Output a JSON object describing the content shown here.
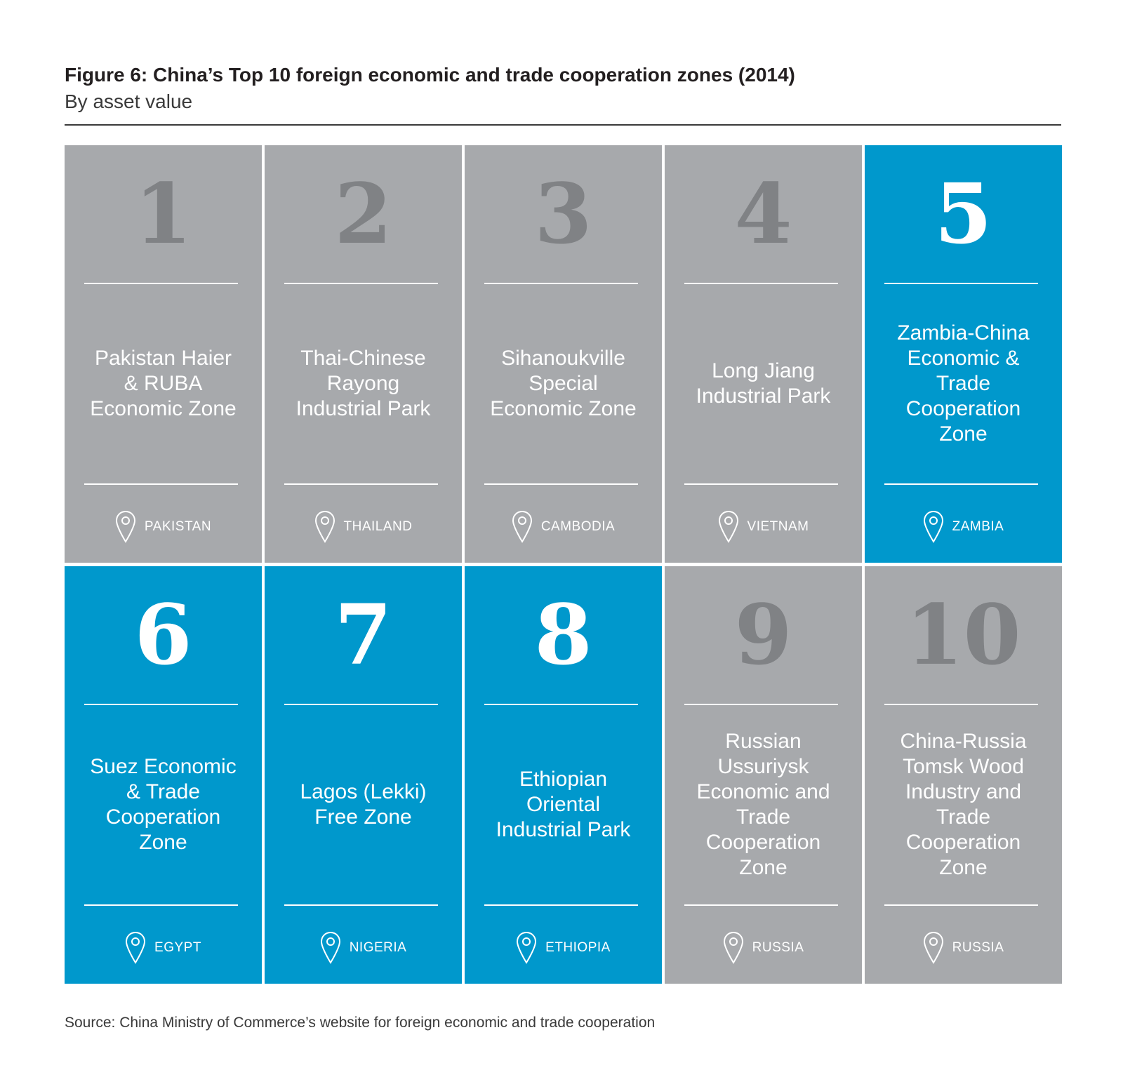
{
  "header": {
    "title": "Figure 6: China’s Top 10 foreign economic and trade cooperation zones (2014)",
    "subtitle": "By asset value"
  },
  "colors": {
    "gray_tile": "#a7a9ac",
    "blue_tile": "#0098cc",
    "gray_number": "#808285",
    "text_on_tile": "#ffffff"
  },
  "zones": [
    {
      "rank": "1",
      "name_lines": [
        "Pakistan Haier",
        "& RUBA",
        "Economic Zone"
      ],
      "country": "PAKISTAN",
      "color": "gray",
      "icon": "location-pin-icon"
    },
    {
      "rank": "2",
      "name_lines": [
        "Thai-Chinese",
        "Rayong",
        "Industrial Park"
      ],
      "country": "THAILAND",
      "color": "gray",
      "icon": "location-pin-icon"
    },
    {
      "rank": "3",
      "name_lines": [
        "Sihanoukville",
        "Special",
        "Economic Zone"
      ],
      "country": "CAMBODIA",
      "color": "gray",
      "icon": "location-pin-icon"
    },
    {
      "rank": "4",
      "name_lines": [
        "Long Jiang",
        "Industrial Park"
      ],
      "country": "VIETNAM",
      "color": "gray",
      "icon": "location-pin-icon"
    },
    {
      "rank": "5",
      "name_lines": [
        "Zambia-China",
        "Economic &",
        "Trade",
        "Cooperation",
        "Zone"
      ],
      "country": "ZAMBIA",
      "color": "blue",
      "icon": "location-pin-icon"
    },
    {
      "rank": "6",
      "name_lines": [
        "Suez Economic",
        "& Trade",
        "Cooperation",
        "Zone"
      ],
      "country": "EGYPT",
      "color": "blue",
      "icon": "location-pin-icon"
    },
    {
      "rank": "7",
      "name_lines": [
        "Lagos (Lekki)",
        "Free Zone"
      ],
      "country": "NIGERIA",
      "color": "blue",
      "icon": "location-pin-icon"
    },
    {
      "rank": "8",
      "name_lines": [
        "Ethiopian",
        "Oriental",
        "Industrial Park"
      ],
      "country": "ETHIOPIA",
      "color": "blue",
      "icon": "location-pin-icon"
    },
    {
      "rank": "9",
      "name_lines": [
        "Russian",
        "Ussuriysk",
        "Economic and",
        "Trade",
        "Cooperation",
        "Zone"
      ],
      "country": "RUSSIA",
      "color": "gray",
      "icon": "location-pin-icon"
    },
    {
      "rank": "10",
      "name_lines": [
        "China-Russia",
        "Tomsk Wood",
        "Industry and",
        "Trade",
        "Cooperation",
        "Zone"
      ],
      "country": "RUSSIA",
      "color": "gray",
      "icon": "location-pin-icon"
    }
  ],
  "footer": {
    "source": "Source: China Ministry of Commerce’s website for foreign economic and trade cooperation"
  }
}
